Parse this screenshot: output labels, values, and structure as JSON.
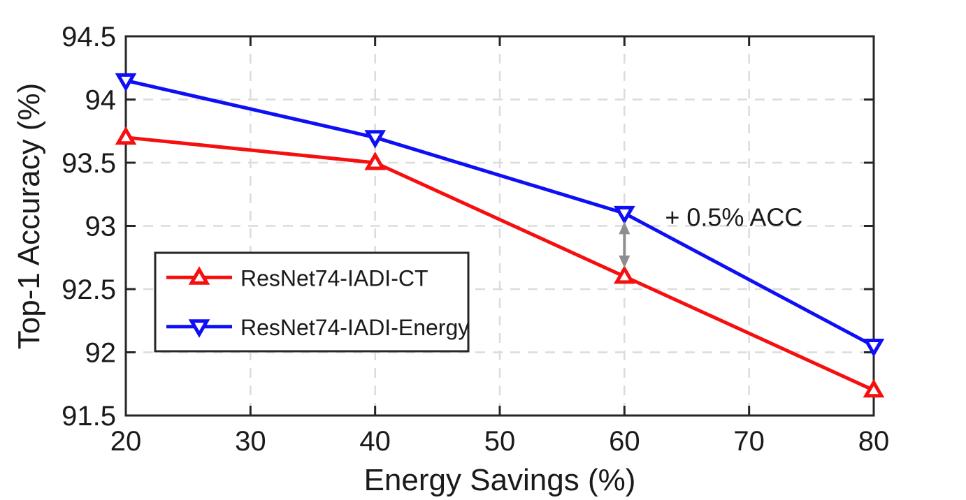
{
  "figure": {
    "background": "#ffffff"
  },
  "chart_data": {
    "type": "line",
    "title": "",
    "xlabel": "Energy Savings (%)",
    "ylabel": "Top-1 Accuracy (%)",
    "x": [
      20,
      40,
      60,
      80
    ],
    "xlim": [
      20,
      80
    ],
    "ylim": [
      91.5,
      94.5
    ],
    "xticks": [
      20,
      30,
      40,
      50,
      60,
      70,
      80
    ],
    "yticks": [
      91.5,
      92,
      92.5,
      93,
      93.5,
      94,
      94.5
    ],
    "grid": true,
    "grid_style": "dashed",
    "grid_color": "#dcdcdc",
    "axis_color": "#262626",
    "legend_position": "left-middle",
    "series": [
      {
        "name": "ResNet74-IADI-CT",
        "color": "#f50f0f",
        "marker": "triangle-up",
        "values": [
          93.7,
          93.5,
          92.6,
          91.7
        ]
      },
      {
        "name": "ResNet74-IADI-Energy",
        "color": "#0f0ff5",
        "marker": "triangle-down",
        "values": [
          94.15,
          93.7,
          93.1,
          92.05
        ]
      }
    ],
    "annotation": {
      "text": "+ 0.5% ACC",
      "x": 60,
      "from_value": 93.1,
      "to_value": 92.6,
      "arrow_color": "#8e8e8e",
      "text_color": "#1a1a1a"
    }
  }
}
